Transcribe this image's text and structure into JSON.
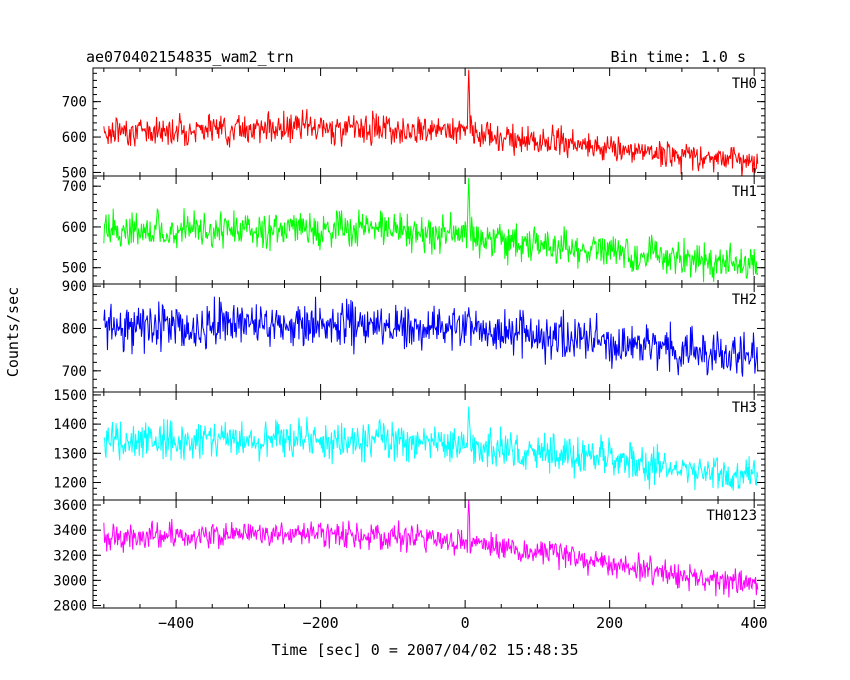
{
  "chart_data": {
    "type": "line",
    "title": "ae070402154835_wam2_trn",
    "subtitle": "Bin time: 1.0 s",
    "xlabel": "Time [sec] 0 = 2007/04/02 15:48:35",
    "ylabel": "Counts/sec",
    "xlim": [
      -515,
      415
    ],
    "xticks": [
      -400,
      -200,
      0,
      200,
      400
    ],
    "x_tick_labels": [
      "−400",
      "−200",
      "0",
      "200",
      "400"
    ],
    "panels": [
      {
        "name": "TH0",
        "color": "#ff0000",
        "ylim": [
          490,
          795
        ],
        "yticks": [
          500,
          600,
          700
        ],
        "ytick_labels": [
          "500",
          "600",
          "700"
        ],
        "trend_x": [
          -500,
          -300,
          -100,
          0,
          100,
          200,
          300,
          405
        ],
        "trend_y": [
          615,
          625,
          625,
          615,
          585,
          570,
          550,
          530
        ],
        "noise_sd": 25,
        "peak_x": 5,
        "peak_y": 790
      },
      {
        "name": "TH1",
        "color": "#00ff00",
        "ylim": [
          460,
          725
        ],
        "yticks": [
          500,
          600,
          700
        ],
        "ytick_labels": [
          "500",
          "600",
          "700"
        ],
        "trend_x": [
          -500,
          -300,
          -100,
          0,
          100,
          200,
          300,
          405
        ],
        "trend_y": [
          590,
          595,
          590,
          580,
          555,
          540,
          520,
          505
        ],
        "noise_sd": 28,
        "peak_x": 5,
        "peak_y": 720
      },
      {
        "name": "TH2",
        "color": "#0000ff",
        "ylim": [
          650,
          905
        ],
        "yticks": [
          700,
          800,
          900
        ],
        "ytick_labels": [
          "700",
          "800",
          "900"
        ],
        "trend_x": [
          -500,
          -300,
          -100,
          0,
          100,
          200,
          300,
          405
        ],
        "trend_y": [
          805,
          810,
          805,
          800,
          785,
          765,
          745,
          735
        ],
        "noise_sd": 32,
        "peak_x": 5,
        "peak_y": 850
      },
      {
        "name": "TH3",
        "color": "#00ffff",
        "ylim": [
          1140,
          1510
        ],
        "yticks": [
          1200,
          1300,
          1400,
          1500
        ],
        "ytick_labels": [
          "1200",
          "1300",
          "1400",
          "1500"
        ],
        "trend_x": [
          -500,
          -300,
          -100,
          0,
          100,
          200,
          300,
          405
        ],
        "trend_y": [
          1340,
          1350,
          1345,
          1330,
          1300,
          1280,
          1245,
          1215
        ],
        "noise_sd": 40,
        "peak_x": 5,
        "peak_y": 1460
      },
      {
        "name": "TH0123",
        "color": "#ff00ff",
        "ylim": [
          2780,
          3640
        ],
        "yticks": [
          2800,
          3000,
          3200,
          3400,
          3600
        ],
        "ytick_labels": [
          "2800",
          "3000",
          "3200",
          "3400",
          "3600"
        ],
        "trend_x": [
          -500,
          -300,
          -100,
          0,
          100,
          200,
          300,
          405
        ],
        "trend_y": [
          3340,
          3370,
          3355,
          3320,
          3220,
          3140,
          3040,
          2950
        ],
        "noise_sd": 65,
        "peak_x": 5,
        "peak_y": 3640
      }
    ]
  }
}
